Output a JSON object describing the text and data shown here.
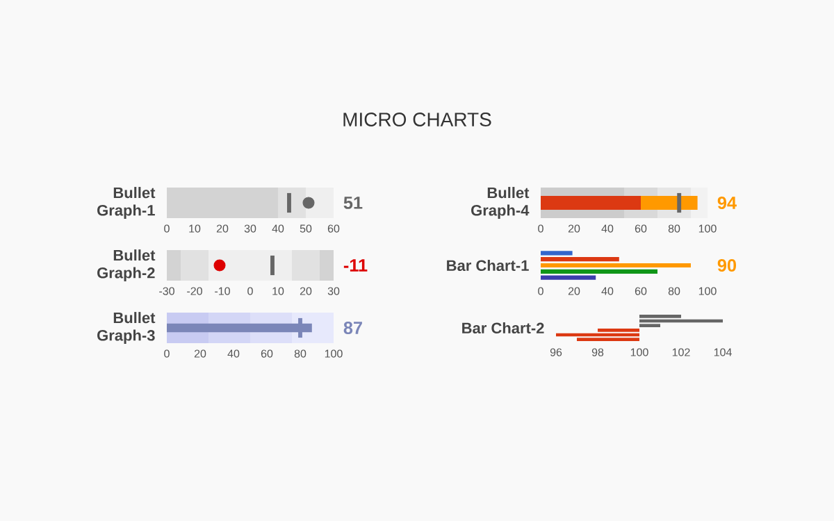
{
  "chart_data": [
    {
      "type": "bar",
      "title": "MICRO CHARTS",
      "orientation": "horizontal",
      "categories": [
        "Bullet Graph-1"
      ],
      "series": [
        {
          "type": "scatter",
          "color": "#666666",
          "values": [
            51
          ]
        }
      ],
      "marker": "circle",
      "data_labels": true,
      "xlim": [
        0,
        60
      ],
      "xticks": [
        0,
        10,
        20,
        30,
        40,
        50,
        60
      ],
      "bands": [
        {
          "axis": "x",
          "from": 0,
          "to": 40,
          "color": "#d3d3d3"
        },
        {
          "axis": "x",
          "from": 40,
          "to": 50,
          "color": "#e1e1e1"
        },
        {
          "axis": "x",
          "from": 50,
          "to": 60,
          "color": "#efefef"
        }
      ],
      "ref_lines": [
        {
          "axis": "x",
          "value": 44,
          "color": "#666666"
        }
      ]
    },
    {
      "type": "bar",
      "orientation": "horizontal",
      "categories": [
        "Bullet Graph-2"
      ],
      "series": [
        {
          "type": "scatter",
          "color": "#dd0000",
          "values": [
            -11
          ]
        }
      ],
      "annotations": [
        "-11"
      ],
      "marker": "circle",
      "xlim": [
        -30,
        30
      ],
      "xticks": [
        -30,
        -20,
        -10,
        0,
        10,
        20,
        30
      ],
      "bands": [
        {
          "axis": "x",
          "from": -30,
          "to": -25,
          "color": "#d3d3d3"
        },
        {
          "axis": "x",
          "from": -25,
          "to": -15,
          "color": "#e1e1e1"
        },
        {
          "axis": "x",
          "from": -15,
          "to": 15,
          "color": "#efefef"
        },
        {
          "axis": "x",
          "from": 15,
          "to": 25,
          "color": "#e1e1e1"
        },
        {
          "axis": "x",
          "from": 25,
          "to": 30,
          "color": "#d3d3d3"
        }
      ],
      "ref_lines": [
        {
          "axis": "x",
          "value": 8,
          "color": "#666666"
        }
      ]
    },
    {
      "type": "bar",
      "orientation": "horizontal",
      "categories": [
        "Bullet Graph-3"
      ],
      "series": [
        {
          "color": "#7b86b8",
          "values": [
            87
          ]
        }
      ],
      "data_labels": true,
      "xlim": [
        0,
        100
      ],
      "xticks": [
        0,
        20,
        40,
        60,
        80,
        100
      ],
      "bands": [
        {
          "axis": "x",
          "from": 0,
          "to": 25,
          "color": "#c8cbf2"
        },
        {
          "axis": "x",
          "from": 25,
          "to": 50,
          "color": "#d3d6f6"
        },
        {
          "axis": "x",
          "from": 50,
          "to": 75,
          "color": "#dddff9"
        },
        {
          "axis": "x",
          "from": 75,
          "to": 100,
          "color": "#e7e9fc"
        }
      ],
      "ref_lines": [
        {
          "axis": "x",
          "value": 80,
          "color": "#7b86b8"
        }
      ]
    },
    {
      "type": "bar",
      "orientation": "horizontal",
      "categories": [
        "Bullet Graph-4"
      ],
      "stacked": true,
      "series": [
        {
          "color": "#dc3912",
          "values": [
            60
          ]
        },
        {
          "color": "#ff9900",
          "values": [
            34
          ]
        }
      ],
      "totals": [
        "94"
      ],
      "xlim": [
        0,
        100
      ],
      "xticks": [
        0,
        20,
        40,
        60,
        80,
        100
      ],
      "bands": [
        {
          "axis": "x",
          "from": 0,
          "to": 50,
          "color": "#cccccc"
        },
        {
          "axis": "x",
          "from": 50,
          "to": 70,
          "color": "#d9d9d9"
        },
        {
          "axis": "x",
          "from": 70,
          "to": 90,
          "color": "#e6e6e6"
        },
        {
          "axis": "x",
          "from": 90,
          "to": 100,
          "color": "#f2f2f2"
        }
      ],
      "ref_lines": [
        {
          "axis": "x",
          "value": 83,
          "color": "#666666"
        }
      ]
    },
    {
      "type": "bar",
      "orientation": "horizontal",
      "ylabel": "Bar Chart-1",
      "categories": [
        null,
        null,
        null,
        null,
        null
      ],
      "values": [
        19,
        47,
        90,
        70,
        33
      ],
      "colors": [
        "#3366cc",
        "#dc3912",
        "#ff9900",
        "#109618",
        "#3b3eac"
      ],
      "value_labels": [
        null,
        null,
        "90",
        null,
        null
      ],
      "xlim": [
        0,
        100
      ],
      "xticks": [
        0,
        20,
        40,
        60,
        80,
        100
      ]
    },
    {
      "type": "bar",
      "orientation": "horizontal",
      "ylabel": "Bar Chart-2",
      "categories": [
        null,
        null,
        null,
        null,
        null,
        null
      ],
      "base": [
        100,
        100,
        100,
        100,
        100,
        100
      ],
      "values": [
        2,
        4,
        1,
        -2,
        -4,
        -3
      ],
      "colors": [
        "#666666",
        "#666666",
        "#666666",
        "#dc3912",
        "#dc3912",
        "#dc3912"
      ],
      "xlim": [
        96,
        104
      ],
      "xticks": [
        96,
        98,
        100,
        102,
        104
      ]
    }
  ]
}
